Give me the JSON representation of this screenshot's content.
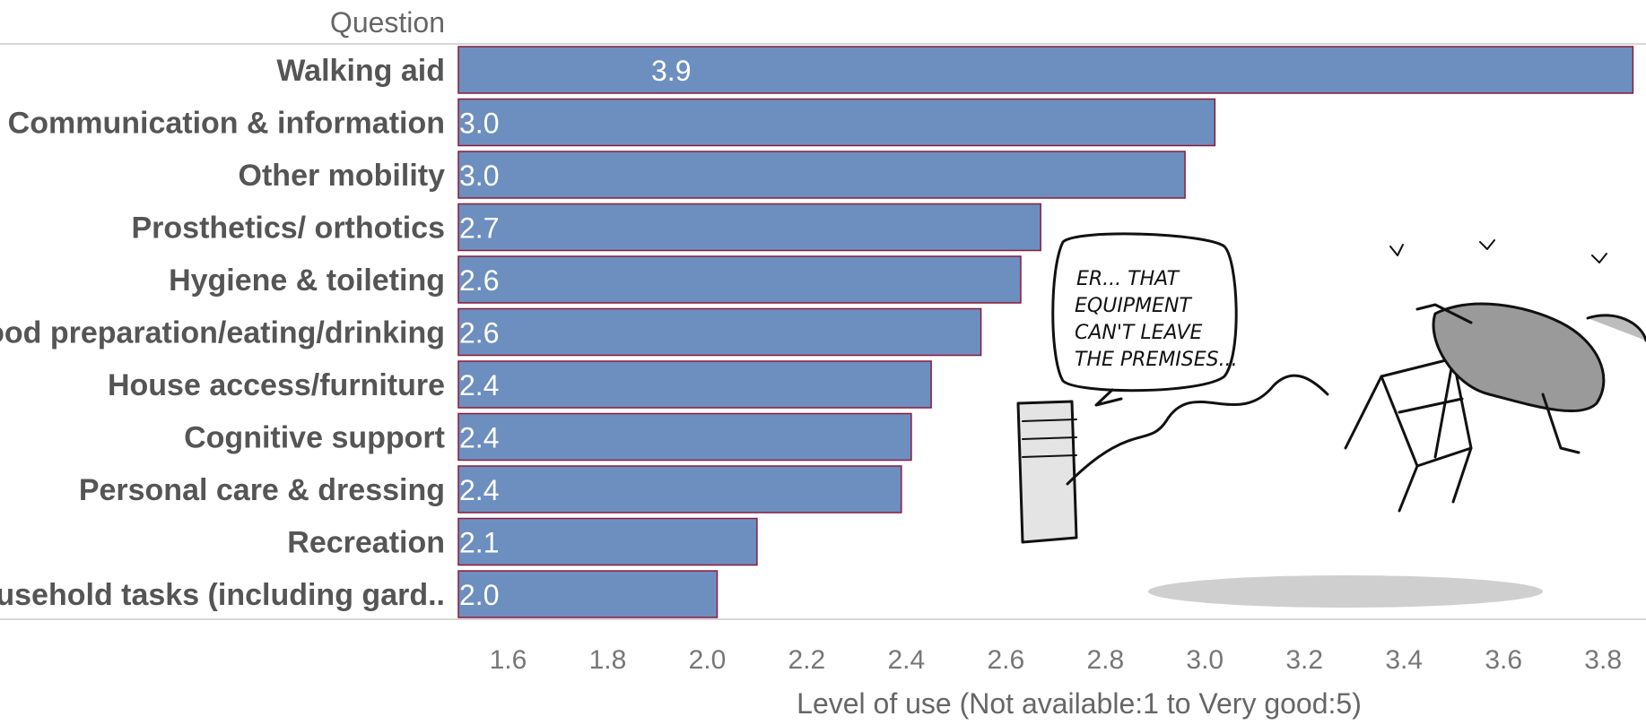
{
  "chart_data": {
    "type": "bar",
    "orientation": "horizontal",
    "row_header": "Question",
    "xlabel": "Level of use (Not available:1 to Very good:5)",
    "xlim": [
      1.5,
      3.87
    ],
    "x_ticks": [
      "1.6",
      "1.8",
      "2.0",
      "2.2",
      "2.4",
      "2.6",
      "2.8",
      "3.0",
      "3.2",
      "3.4",
      "3.6",
      "3.8"
    ],
    "categories": [
      "Walking aid",
      "Communication & information",
      "Other mobility",
      "Prosthetics/ orthotics",
      "Hygiene & toileting",
      "Food preparation/eating/drinking",
      "House access/furniture",
      "Cognitive support",
      "Personal care & dressing",
      "Recreation",
      "Household tasks (including gard.."
    ],
    "values": [
      3.86,
      3.02,
      2.96,
      2.67,
      2.63,
      2.55,
      2.45,
      2.41,
      2.39,
      2.1,
      2.02
    ],
    "data_labels": [
      "3.9",
      "3.0",
      "3.0",
      "2.7",
      "2.6",
      "2.6",
      "2.4",
      "2.4",
      "2.4",
      "2.1",
      "2.0"
    ],
    "grid": false,
    "bar_color": "#6d8fbf",
    "bar_edge_color": "#8b1a3a"
  },
  "cartoon": {
    "speech_lines": [
      "ER... THAT",
      "EQUIPMENT",
      "CAN'T LEAVE",
      "THE PREMISES..."
    ]
  }
}
